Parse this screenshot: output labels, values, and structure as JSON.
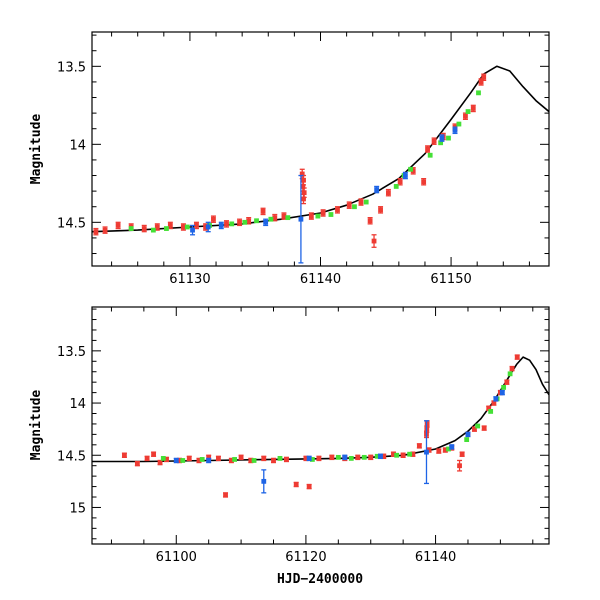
{
  "chart_data": [
    {
      "type": "scatter",
      "panel": "top",
      "ylabel": "Magnitude",
      "xlabel": "",
      "xlim": [
        61122.5,
        61157.5
      ],
      "ylim": [
        14.78,
        13.28
      ],
      "y_inverted": true,
      "x_ticks": [
        61130,
        61140,
        61150
      ],
      "x_tick_labels": [
        "61130",
        "61140",
        "61150"
      ],
      "y_ticks": [
        13.5,
        14,
        14.5
      ],
      "y_tick_labels": [
        "13.5",
        "14",
        "14.5"
      ],
      "colors": {
        "red": "#ee3b33",
        "green": "#44e036",
        "blue": "#1e64e6",
        "model": "#000000"
      },
      "series": [
        {
          "name": "red",
          "color": "#ee3b33",
          "points": [
            [
              61122.8,
              14.56
            ],
            [
              61123.5,
              14.55
            ],
            [
              61124.5,
              14.52
            ],
            [
              61125.5,
              14.53
            ],
            [
              61126.5,
              14.54
            ],
            [
              61127.5,
              14.53
            ],
            [
              61128.5,
              14.52
            ],
            [
              61129.5,
              14.53
            ],
            [
              61130.5,
              14.52
            ],
            [
              61131.2,
              14.53
            ],
            [
              61131.8,
              14.48
            ],
            [
              61132.8,
              14.51
            ],
            [
              61133.8,
              14.5
            ],
            [
              61134.5,
              14.49
            ],
            [
              61135.6,
              14.43
            ],
            [
              61136.5,
              14.47
            ],
            [
              61137.2,
              14.46
            ],
            [
              61138.6,
              14.19
            ],
            [
              61138.7,
              14.23
            ],
            [
              61138.65,
              14.27
            ],
            [
              61138.75,
              14.31
            ],
            [
              61138.7,
              14.35
            ],
            [
              61139.3,
              14.46
            ],
            [
              61140.2,
              14.44
            ],
            [
              61141.3,
              14.42
            ],
            [
              61142.2,
              14.39
            ],
            [
              61143.1,
              14.37
            ],
            [
              61143.8,
              14.49
            ],
            [
              61144.1,
              14.62
            ],
            [
              61144.6,
              14.42
            ],
            [
              61145.2,
              14.31
            ],
            [
              61146.1,
              14.24
            ],
            [
              61147.1,
              14.17
            ],
            [
              61147.9,
              14.24
            ],
            [
              61148.2,
              14.03
            ],
            [
              61148.7,
              13.98
            ],
            [
              61149.4,
              13.95
            ],
            [
              61150.3,
              13.89
            ],
            [
              61151.1,
              13.82
            ],
            [
              61151.7,
              13.77
            ],
            [
              61152.5,
              13.57
            ],
            [
              61152.3,
              13.6
            ]
          ],
          "yerr": [
            0.02,
            0.02,
            0.02,
            0.02,
            0.02,
            0.02,
            0.02,
            0.02,
            0.02,
            0.02,
            0.02,
            0.02,
            0.02,
            0.02,
            0.02,
            0.02,
            0.02,
            0.03,
            0.03,
            0.03,
            0.03,
            0.03,
            0.02,
            0.02,
            0.02,
            0.02,
            0.02,
            0.02,
            0.04,
            0.02,
            0.02,
            0.02,
            0.02,
            0.02,
            0.02,
            0.02,
            0.02,
            0.02,
            0.02,
            0.02,
            0.02,
            0.02
          ]
        },
        {
          "name": "green",
          "color": "#44e036",
          "points": [
            [
              61125.5,
              14.54
            ],
            [
              61127.2,
              14.55
            ],
            [
              61128.2,
              14.54
            ],
            [
              61129.8,
              14.53
            ],
            [
              61131.5,
              14.52
            ],
            [
              61133.2,
              14.51
            ],
            [
              61134.2,
              14.5
            ],
            [
              61135.1,
              14.49
            ],
            [
              61136.2,
              14.48
            ],
            [
              61137.5,
              14.47
            ],
            [
              61139.8,
              14.46
            ],
            [
              61140.8,
              14.45
            ],
            [
              61142.6,
              14.4
            ],
            [
              61143.5,
              14.37
            ],
            [
              61145.8,
              14.27
            ],
            [
              61146.4,
              14.2
            ],
            [
              61146.9,
              14.16
            ],
            [
              61148.4,
              14.07
            ],
            [
              61149.2,
              13.99
            ],
            [
              61149.8,
              13.96
            ],
            [
              61150.6,
              13.87
            ],
            [
              61151.3,
              13.79
            ],
            [
              61152.1,
              13.67
            ]
          ],
          "yerr": [
            0.01,
            0.01,
            0.01,
            0.01,
            0.01,
            0.01,
            0.01,
            0.01,
            0.01,
            0.01,
            0.01,
            0.01,
            0.01,
            0.01,
            0.01,
            0.01,
            0.01,
            0.01,
            0.01,
            0.01,
            0.01,
            0.01,
            0.01
          ]
        },
        {
          "name": "blue",
          "color": "#1e64e6",
          "points": [
            [
              61130.2,
              14.55
            ],
            [
              61131.4,
              14.53
            ],
            [
              61132.4,
              14.52
            ],
            [
              61135.8,
              14.5
            ],
            [
              61138.5,
              14.48
            ],
            [
              61144.3,
              14.29
            ],
            [
              61146.5,
              14.2
            ],
            [
              61149.3,
              13.96
            ],
            [
              61150.3,
              13.91
            ]
          ],
          "yerr": [
            0.03,
            0.03,
            0.02,
            0.02,
            0.28,
            0.02,
            0.02,
            0.02,
            0.02
          ]
        }
      ],
      "model_curve": {
        "name": "model",
        "x": [
          61122.5,
          61126,
          61130,
          61134,
          61137,
          61140,
          61142,
          61144,
          61146,
          61148,
          61150,
          61151.5,
          61152.5,
          61153.5,
          61154.5,
          61155.5,
          61156.5,
          61157.5
        ],
        "y": [
          14.56,
          14.55,
          14.53,
          14.51,
          14.48,
          14.44,
          14.39,
          14.32,
          14.22,
          14.06,
          13.84,
          13.67,
          13.55,
          13.5,
          13.53,
          13.63,
          13.72,
          13.79
        ]
      }
    },
    {
      "type": "scatter",
      "panel": "bottom",
      "ylabel": "Magnitude",
      "xlabel": "HJD−2400000",
      "xlim": [
        61087,
        61157.5
      ],
      "ylim": [
        15.35,
        13.08
      ],
      "y_inverted": true,
      "x_ticks": [
        61100,
        61120,
        61140
      ],
      "x_tick_labels": [
        "61100",
        "61120",
        "61140"
      ],
      "y_ticks": [
        13.5,
        14,
        14.5,
        15
      ],
      "y_tick_labels": [
        "13.5",
        "14",
        "14.5",
        "15"
      ],
      "colors": {
        "red": "#ee3b33",
        "green": "#44e036",
        "blue": "#1e64e6",
        "model": "#000000"
      },
      "series": [
        {
          "name": "red",
          "color": "#ee3b33",
          "points": [
            [
              61092,
              14.5
            ],
            [
              61094,
              14.58
            ],
            [
              61095.5,
              14.53
            ],
            [
              61096.5,
              14.49
            ],
            [
              61097.5,
              14.57
            ],
            [
              61098.5,
              14.54
            ],
            [
              61100.5,
              14.55
            ],
            [
              61102,
              14.53
            ],
            [
              61103.5,
              14.55
            ],
            [
              61105,
              14.52
            ],
            [
              61106.5,
              14.53
            ],
            [
              61107.6,
              14.88
            ],
            [
              61108.5,
              14.55
            ],
            [
              61110,
              14.52
            ],
            [
              61111.5,
              14.55
            ],
            [
              61113.5,
              14.53
            ],
            [
              61115,
              14.55
            ],
            [
              61117,
              14.54
            ],
            [
              61118.5,
              14.78
            ],
            [
              61120,
              14.53
            ],
            [
              61120.5,
              14.8
            ],
            [
              61122,
              14.53
            ],
            [
              61124,
              14.52
            ],
            [
              61126,
              14.53
            ],
            [
              61128,
              14.52
            ],
            [
              61130,
              14.52
            ],
            [
              61132,
              14.51
            ],
            [
              61133.5,
              14.49
            ],
            [
              61135,
              14.5
            ],
            [
              61136.5,
              14.49
            ],
            [
              61137.5,
              14.41
            ],
            [
              61138.6,
              14.3
            ],
            [
              61138.7,
              14.2
            ],
            [
              61138.65,
              14.25
            ],
            [
              61139,
              14.45
            ],
            [
              61140.5,
              14.46
            ],
            [
              61141.5,
              14.45
            ],
            [
              61142.5,
              14.43
            ],
            [
              61143.7,
              14.6
            ],
            [
              61144.1,
              14.49
            ],
            [
              61145,
              14.3
            ],
            [
              61146,
              14.25
            ],
            [
              61147.5,
              14.24
            ],
            [
              61148.2,
              14.05
            ],
            [
              61149,
              14.0
            ],
            [
              61150,
              13.9
            ],
            [
              61151,
              13.8
            ],
            [
              61151.8,
              13.67
            ],
            [
              61152.6,
              13.56
            ]
          ],
          "yerr": [
            0.02,
            0.02,
            0.02,
            0.02,
            0.02,
            0.02,
            0.02,
            0.02,
            0.02,
            0.02,
            0.02,
            0.02,
            0.02,
            0.02,
            0.02,
            0.02,
            0.02,
            0.02,
            0.02,
            0.02,
            0.02,
            0.02,
            0.02,
            0.02,
            0.02,
            0.02,
            0.02,
            0.02,
            0.02,
            0.02,
            0.02,
            0.03,
            0.03,
            0.03,
            0.02,
            0.02,
            0.02,
            0.02,
            0.05,
            0.02,
            0.02,
            0.02,
            0.02,
            0.02,
            0.02,
            0.02,
            0.02,
            0.02,
            0.02
          ]
        },
        {
          "name": "green",
          "color": "#44e036",
          "points": [
            [
              61098,
              14.53
            ],
            [
              61101,
              14.55
            ],
            [
              61104,
              14.54
            ],
            [
              61109,
              14.54
            ],
            [
              61112,
              14.55
            ],
            [
              61116,
              14.53
            ],
            [
              61121,
              14.54
            ],
            [
              61125,
              14.52
            ],
            [
              61127,
              14.53
            ],
            [
              61129,
              14.52
            ],
            [
              61131,
              14.51
            ],
            [
              61134,
              14.5
            ],
            [
              61136,
              14.49
            ],
            [
              61142,
              14.44
            ],
            [
              61144.8,
              14.35
            ],
            [
              61146.5,
              14.22
            ],
            [
              61148.5,
              14.08
            ],
            [
              61149.5,
              13.96
            ],
            [
              61150.5,
              13.85
            ],
            [
              61151.5,
              13.72
            ]
          ],
          "yerr": [
            0.01,
            0.01,
            0.01,
            0.01,
            0.01,
            0.01,
            0.01,
            0.01,
            0.01,
            0.01,
            0.01,
            0.01,
            0.01,
            0.01,
            0.01,
            0.01,
            0.01,
            0.01,
            0.01,
            0.01
          ]
        },
        {
          "name": "blue",
          "color": "#1e64e6",
          "points": [
            [
              61100,
              14.55
            ],
            [
              61105,
              14.55
            ],
            [
              61113.5,
              14.75
            ],
            [
              61120.5,
              14.53
            ],
            [
              61126,
              14.52
            ],
            [
              61131.5,
              14.51
            ],
            [
              61138.6,
              14.47
            ],
            [
              61142.5,
              14.42
            ],
            [
              61145,
              14.3
            ],
            [
              61149.3,
              13.96
            ],
            [
              61150.3,
              13.9
            ]
          ],
          "yerr": [
            0.02,
            0.02,
            0.11,
            0.02,
            0.02,
            0.02,
            0.3,
            0.02,
            0.02,
            0.02,
            0.02
          ]
        }
      ],
      "model_curve": {
        "name": "model",
        "x": [
          61087,
          61095,
          61105,
          61115,
          61125,
          61130,
          61135,
          61140,
          61143,
          61145,
          61147,
          61149,
          61151,
          61152.5,
          61153.5,
          61154.5,
          61155.5,
          61156.5,
          61157.5
        ],
        "y": [
          14.56,
          14.56,
          14.55,
          14.54,
          14.53,
          14.52,
          14.5,
          14.44,
          14.36,
          14.27,
          14.15,
          13.98,
          13.78,
          13.63,
          13.56,
          13.59,
          13.68,
          13.82,
          13.92
        ]
      }
    }
  ]
}
